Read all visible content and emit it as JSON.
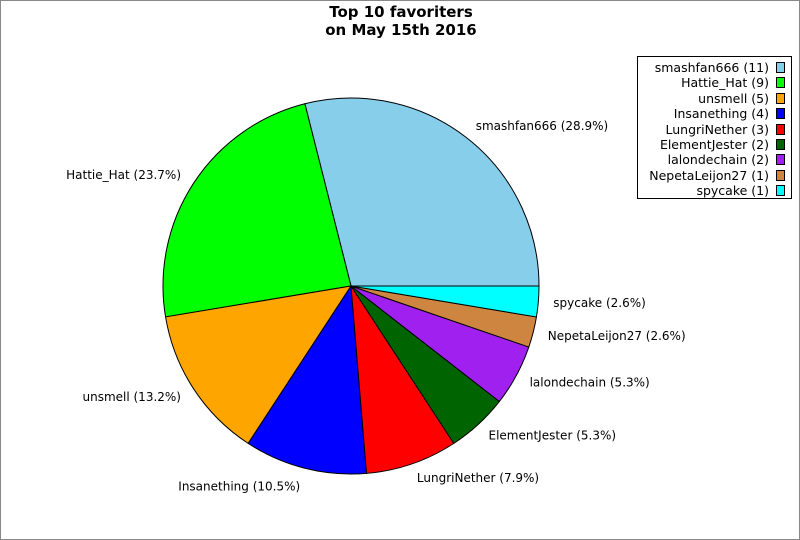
{
  "chart_data": {
    "type": "pie",
    "title": "Top 10 favoriters\non May 15th 2016",
    "title_lines": [
      "Top 10 favoriters",
      "on May 15th 2016"
    ],
    "legend_position": "top-right",
    "slices": [
      {
        "name": "smashfan666",
        "count": 11,
        "percent": 28.9,
        "label": "smashfan666 (28.9%)",
        "legend": "smashfan666 (11)",
        "color": "#87CEEB"
      },
      {
        "name": "Hattie_Hat",
        "count": 9,
        "percent": 23.7,
        "label": "Hattie_Hat (23.7%)",
        "legend": "Hattie_Hat (9)",
        "color": "#00FF00"
      },
      {
        "name": "unsmell",
        "count": 5,
        "percent": 13.2,
        "label": "unsmell (13.2%)",
        "legend": "unsmell (5)",
        "color": "#FFA500"
      },
      {
        "name": "Insanething",
        "count": 4,
        "percent": 10.5,
        "label": "Insanething (10.5%)",
        "legend": "Insanething (4)",
        "color": "#0000FF"
      },
      {
        "name": "LungriNether",
        "count": 3,
        "percent": 7.9,
        "label": "LungriNether (7.9%)",
        "legend": "LungriNether (3)",
        "color": "#FF0000"
      },
      {
        "name": "ElementJester",
        "count": 2,
        "percent": 5.3,
        "label": "ElementJester (5.3%)",
        "legend": "ElementJester (2)",
        "color": "#006400"
      },
      {
        "name": "lalondechain",
        "count": 2,
        "percent": 5.3,
        "label": "lalondechain (5.3%)",
        "legend": "lalondechain (2)",
        "color": "#A020F0"
      },
      {
        "name": "NepetaLeijon27",
        "count": 1,
        "percent": 2.6,
        "label": "NepetaLeijon27 (2.6%)",
        "legend": "NepetaLeijon27 (1)",
        "color": "#CD853F"
      },
      {
        "name": "spycake",
        "count": 1,
        "percent": 2.6,
        "label": "spycake (2.6%)",
        "legend": "spycake (1)",
        "color": "#00FFFF"
      }
    ]
  }
}
